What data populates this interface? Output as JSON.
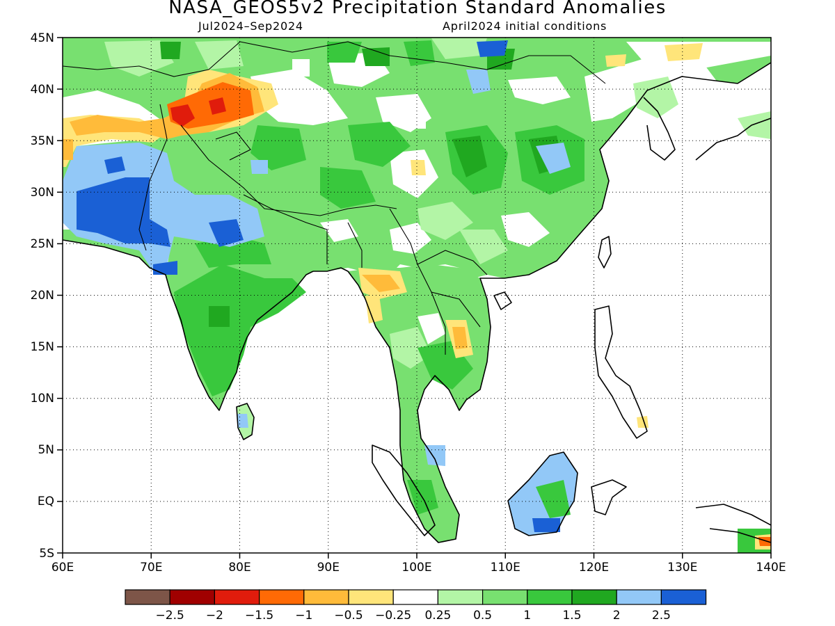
{
  "title": "NASA_GEOS5v2 Precipitation Standard Anomalies",
  "period": "Jul2024–Sep2024",
  "initial_conditions": "April2024 initial conditions",
  "map": {
    "lon_range": [
      60,
      140
    ],
    "lat_range": [
      -5,
      45
    ],
    "lon_ticks": [
      "60E",
      "70E",
      "80E",
      "90E",
      "100E",
      "110E",
      "120E",
      "130E",
      "140E"
    ],
    "lat_ticks": [
      "45N",
      "40N",
      "35N",
      "30N",
      "25N",
      "20N",
      "15N",
      "10N",
      "5N",
      "EQ",
      "5S"
    ],
    "grid": "dotted"
  },
  "colorbar": {
    "labels": [
      "−2.5",
      "−2",
      "−1.5",
      "−1",
      "−0.5",
      "−0.25",
      "0.25",
      "0.5",
      "1",
      "1.5",
      "2",
      "2.5"
    ],
    "colors": [
      "#7d5548",
      "#a00000",
      "#e01c0c",
      "#ff6a05",
      "#ffbb3a",
      "#ffe57a",
      "#ffffff",
      "#b3f5a6",
      "#78e070",
      "#39c83d",
      "#20a820",
      "#92c8f7",
      "#1a60d5"
    ]
  },
  "palette": {
    "ocean": "#ffffff",
    "land_base": "#78e070",
    "coast": "#000000"
  },
  "regions": [
    {
      "name": "base-green-asia",
      "color": "#78e070"
    },
    {
      "name": "india-green",
      "color": "#39c83d"
    },
    {
      "name": "pakistan-blue",
      "color": "#1a60d5"
    },
    {
      "name": "pakistan-lightblue",
      "color": "#92c8f7"
    },
    {
      "name": "tibet-orange",
      "color": "#ff6a05"
    },
    {
      "name": "tibet-red",
      "color": "#e01c0c"
    },
    {
      "name": "afghan-yellow",
      "color": "#ffe57a"
    },
    {
      "name": "afghan-orange",
      "color": "#ffbb3a"
    },
    {
      "name": "china-darkgreen",
      "color": "#20a820"
    },
    {
      "name": "china-lightblue",
      "color": "#92c8f7"
    },
    {
      "name": "tibet-white",
      "color": "#ffffff"
    },
    {
      "name": "myanmar-orange",
      "color": "#ffbb3a"
    },
    {
      "name": "borneo-lightblue",
      "color": "#92c8f7"
    },
    {
      "name": "mongolia-blue",
      "color": "#1a60d5"
    }
  ]
}
